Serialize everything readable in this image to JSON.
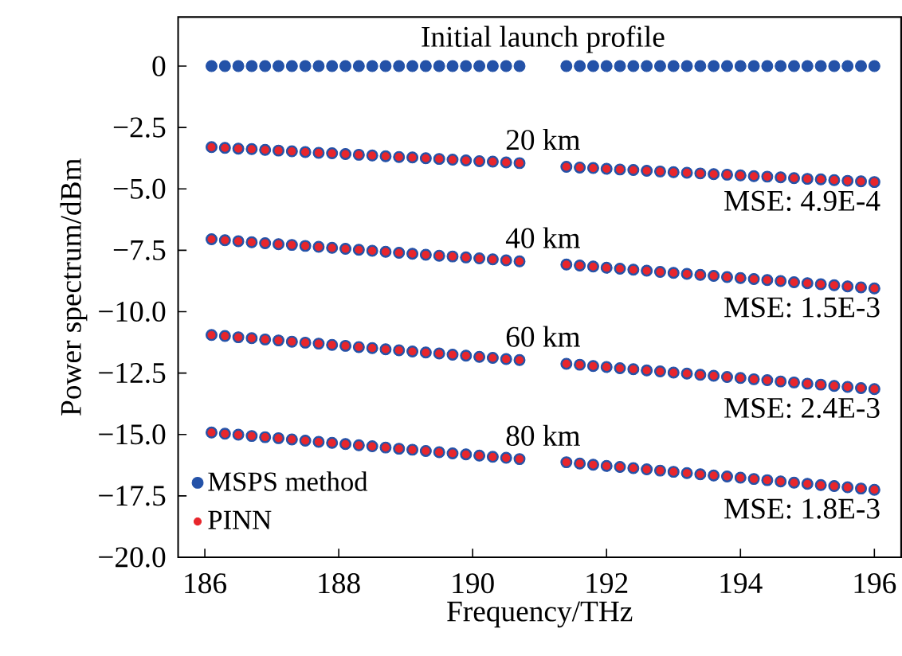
{
  "chart_data": {
    "type": "scatter",
    "xlabel": "Frequency/THz",
    "ylabel": "Power spectrum/dBm",
    "x": [
      186.1,
      186.3,
      186.5,
      186.7,
      186.9,
      187.1,
      187.3,
      187.5,
      187.7,
      187.9,
      188.1,
      188.3,
      188.5,
      188.7,
      188.9,
      189.1,
      189.3,
      189.5,
      189.7,
      189.9,
      190.1,
      190.3,
      190.5,
      190.7,
      191.4,
      191.6,
      191.8,
      192.0,
      192.2,
      192.4,
      192.6,
      192.8,
      193.0,
      193.2,
      193.4,
      193.6,
      193.8,
      194.0,
      194.2,
      194.4,
      194.6,
      194.8,
      195.0,
      195.2,
      195.4,
      195.6,
      195.8,
      196.0
    ],
    "series": [
      {
        "name": "MSPS method",
        "color": "#2452a8",
        "values": [
          0,
          0,
          0,
          0,
          0,
          0,
          0,
          0,
          0,
          0,
          0,
          0,
          0,
          0,
          0,
          0,
          0,
          0,
          0,
          0,
          0,
          0,
          0,
          0,
          0,
          0,
          0,
          0,
          0,
          0,
          0,
          0,
          0,
          0,
          0,
          0,
          0,
          0,
          0,
          0,
          0,
          0,
          0,
          0,
          0,
          0,
          0,
          0
        ]
      },
      {
        "color": "#2452a8",
        "values": [
          -3.3,
          -3.33,
          -3.36,
          -3.38,
          -3.41,
          -3.44,
          -3.47,
          -3.5,
          -3.53,
          -3.55,
          -3.58,
          -3.61,
          -3.64,
          -3.67,
          -3.7,
          -3.72,
          -3.75,
          -3.78,
          -3.81,
          -3.84,
          -3.87,
          -3.89,
          -3.92,
          -3.95,
          -4.1,
          -4.13,
          -4.15,
          -4.18,
          -4.21,
          -4.23,
          -4.26,
          -4.29,
          -4.32,
          -4.34,
          -4.37,
          -4.4,
          -4.42,
          -4.45,
          -4.48,
          -4.5,
          -4.53,
          -4.56,
          -4.59,
          -4.61,
          -4.64,
          -4.67,
          -4.69,
          -4.72
        ]
      },
      {
        "color": "#2452a8",
        "values": [
          -7.05,
          -7.09,
          -7.13,
          -7.17,
          -7.21,
          -7.25,
          -7.28,
          -7.32,
          -7.36,
          -7.4,
          -7.44,
          -7.48,
          -7.52,
          -7.56,
          -7.6,
          -7.64,
          -7.68,
          -7.72,
          -7.75,
          -7.79,
          -7.83,
          -7.87,
          -7.91,
          -7.95,
          -8.08,
          -8.12,
          -8.16,
          -8.21,
          -8.25,
          -8.29,
          -8.33,
          -8.38,
          -8.42,
          -8.46,
          -8.5,
          -8.54,
          -8.59,
          -8.63,
          -8.67,
          -8.71,
          -8.75,
          -8.8,
          -8.84,
          -8.88,
          -8.92,
          -8.97,
          -9.01,
          -9.05
        ]
      },
      {
        "color": "#2452a8",
        "values": [
          -10.95,
          -10.99,
          -11.04,
          -11.08,
          -11.13,
          -11.17,
          -11.22,
          -11.26,
          -11.3,
          -11.35,
          -11.39,
          -11.44,
          -11.48,
          -11.53,
          -11.57,
          -11.62,
          -11.66,
          -11.7,
          -11.75,
          -11.79,
          -11.84,
          -11.88,
          -11.93,
          -11.97,
          -12.12,
          -12.16,
          -12.21,
          -12.25,
          -12.3,
          -12.34,
          -12.39,
          -12.43,
          -12.48,
          -12.52,
          -12.57,
          -12.61,
          -12.66,
          -12.7,
          -12.75,
          -12.79,
          -12.84,
          -12.88,
          -12.93,
          -12.97,
          -13.02,
          -13.06,
          -13.11,
          -13.15
        ]
      },
      {
        "color": "#2452a8",
        "values": [
          -14.92,
          -14.97,
          -15.01,
          -15.06,
          -15.11,
          -15.15,
          -15.2,
          -15.25,
          -15.3,
          -15.34,
          -15.39,
          -15.44,
          -15.48,
          -15.53,
          -15.58,
          -15.62,
          -15.67,
          -15.72,
          -15.77,
          -15.81,
          -15.86,
          -15.91,
          -15.95,
          -16.0,
          -16.13,
          -16.18,
          -16.23,
          -16.28,
          -16.32,
          -16.37,
          -16.42,
          -16.47,
          -16.52,
          -16.57,
          -16.62,
          -16.67,
          -16.71,
          -16.76,
          -16.81,
          -16.86,
          -16.91,
          -16.96,
          -17.01,
          -17.06,
          -17.1,
          -17.15,
          -17.2,
          -17.25
        ]
      },
      {
        "name": "PINN",
        "color": "#e8262c",
        "values": [
          -3.3,
          -3.33,
          -3.36,
          -3.38,
          -3.41,
          -3.44,
          -3.47,
          -3.5,
          -3.53,
          -3.55,
          -3.58,
          -3.61,
          -3.64,
          -3.67,
          -3.7,
          -3.72,
          -3.75,
          -3.78,
          -3.81,
          -3.84,
          -3.87,
          -3.89,
          -3.92,
          -3.95,
          -4.1,
          -4.13,
          -4.15,
          -4.18,
          -4.21,
          -4.23,
          -4.26,
          -4.29,
          -4.32,
          -4.34,
          -4.37,
          -4.4,
          -4.42,
          -4.45,
          -4.48,
          -4.5,
          -4.53,
          -4.56,
          -4.59,
          -4.61,
          -4.64,
          -4.67,
          -4.69,
          -4.72
        ]
      },
      {
        "color": "#e8262c",
        "values": [
          -7.05,
          -7.09,
          -7.13,
          -7.17,
          -7.21,
          -7.25,
          -7.28,
          -7.32,
          -7.36,
          -7.4,
          -7.44,
          -7.48,
          -7.52,
          -7.56,
          -7.6,
          -7.64,
          -7.68,
          -7.72,
          -7.75,
          -7.79,
          -7.83,
          -7.87,
          -7.91,
          -7.95,
          -8.08,
          -8.12,
          -8.16,
          -8.21,
          -8.25,
          -8.29,
          -8.33,
          -8.38,
          -8.42,
          -8.46,
          -8.5,
          -8.54,
          -8.59,
          -8.63,
          -8.67,
          -8.71,
          -8.75,
          -8.8,
          -8.84,
          -8.88,
          -8.92,
          -8.97,
          -9.01,
          -9.05
        ]
      },
      {
        "color": "#e8262c",
        "values": [
          -10.95,
          -10.99,
          -11.04,
          -11.08,
          -11.13,
          -11.17,
          -11.22,
          -11.26,
          -11.3,
          -11.35,
          -11.39,
          -11.44,
          -11.48,
          -11.53,
          -11.57,
          -11.62,
          -11.66,
          -11.7,
          -11.75,
          -11.79,
          -11.84,
          -11.88,
          -11.93,
          -11.97,
          -12.12,
          -12.16,
          -12.21,
          -12.25,
          -12.3,
          -12.34,
          -12.39,
          -12.43,
          -12.48,
          -12.52,
          -12.57,
          -12.61,
          -12.66,
          -12.7,
          -12.75,
          -12.79,
          -12.84,
          -12.88,
          -12.93,
          -12.97,
          -13.02,
          -13.06,
          -13.11,
          -13.15
        ]
      },
      {
        "color": "#e8262c",
        "values": [
          -14.92,
          -14.97,
          -15.01,
          -15.06,
          -15.11,
          -15.15,
          -15.2,
          -15.25,
          -15.3,
          -15.34,
          -15.39,
          -15.44,
          -15.48,
          -15.53,
          -15.58,
          -15.62,
          -15.67,
          -15.72,
          -15.77,
          -15.81,
          -15.86,
          -15.91,
          -15.95,
          -16.0,
          -16.13,
          -16.18,
          -16.23,
          -16.28,
          -16.32,
          -16.37,
          -16.42,
          -16.47,
          -16.52,
          -16.57,
          -16.62,
          -16.67,
          -16.71,
          -16.76,
          -16.81,
          -16.86,
          -16.91,
          -16.96,
          -17.01,
          -17.06,
          -17.1,
          -17.15,
          -17.2,
          -17.25
        ]
      }
    ],
    "legend": "bottom left",
    "grid": false,
    "xlim": [
      185.6,
      196.4
    ],
    "ylim": [
      -20,
      2
    ],
    "xticks": [
      186,
      188,
      190,
      192,
      194,
      196
    ],
    "yticks": [
      {
        "value": 0,
        "label": "0"
      },
      {
        "value": -2.5,
        "label": "−2.5"
      },
      {
        "value": -5,
        "label": "−5.0"
      },
      {
        "value": -7.5,
        "label": "−7.5"
      },
      {
        "value": -10,
        "label": "−10.0"
      },
      {
        "value": -12.5,
        "label": "−12.5"
      },
      {
        "value": -15,
        "label": "−15.0"
      },
      {
        "value": -17.5,
        "label": "−17.5"
      },
      {
        "value": -20,
        "label": "−20.0"
      }
    ],
    "annotations": [
      "Initial launch profile",
      "20 km",
      "40 km",
      "60 km",
      "80 km",
      "MSE: 4.9E-4",
      "MSE: 1.5E-3",
      "MSE: 2.4E-3",
      "MSE: 1.8E-3"
    ]
  }
}
